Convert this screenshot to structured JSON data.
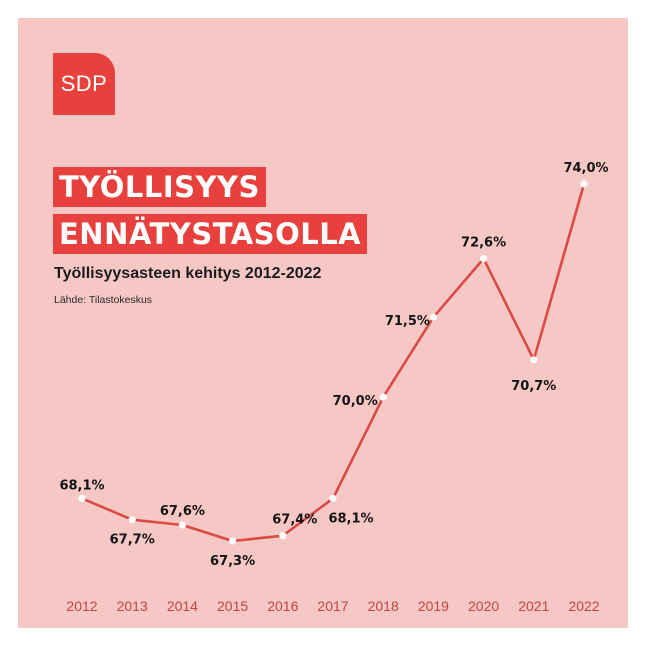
{
  "logo": {
    "text": "SDP"
  },
  "headline": {
    "line1": "TYÖLLISYYS",
    "line2": "ENNÄTYSTASOLLA"
  },
  "subtitle": "Työllisyysasteen kehitys 2012-2022",
  "source": "Lähde: Tilastokeskus",
  "colors": {
    "background": "#f5c7c5",
    "accent": "#e8413d",
    "line": "#d94c45",
    "marker": "#ffffff"
  },
  "chart_data": {
    "type": "line",
    "categories": [
      "2012",
      "2013",
      "2014",
      "2015",
      "2016",
      "2017",
      "2018",
      "2019",
      "2020",
      "2021",
      "2022"
    ],
    "values": [
      68.1,
      67.7,
      67.6,
      67.3,
      67.4,
      68.1,
      70.0,
      71.5,
      72.6,
      70.7,
      74.0
    ],
    "data_labels": [
      "68,1%",
      "67,7%",
      "67,6%",
      "67,3%",
      "67,4%",
      "68,1%",
      "70,0%",
      "71,5%",
      "72,6%",
      "70,7%",
      "74,0%"
    ],
    "title": "Työllisyysasteen kehitys 2012-2022",
    "xlabel": "",
    "ylabel": "",
    "grid": false
  }
}
